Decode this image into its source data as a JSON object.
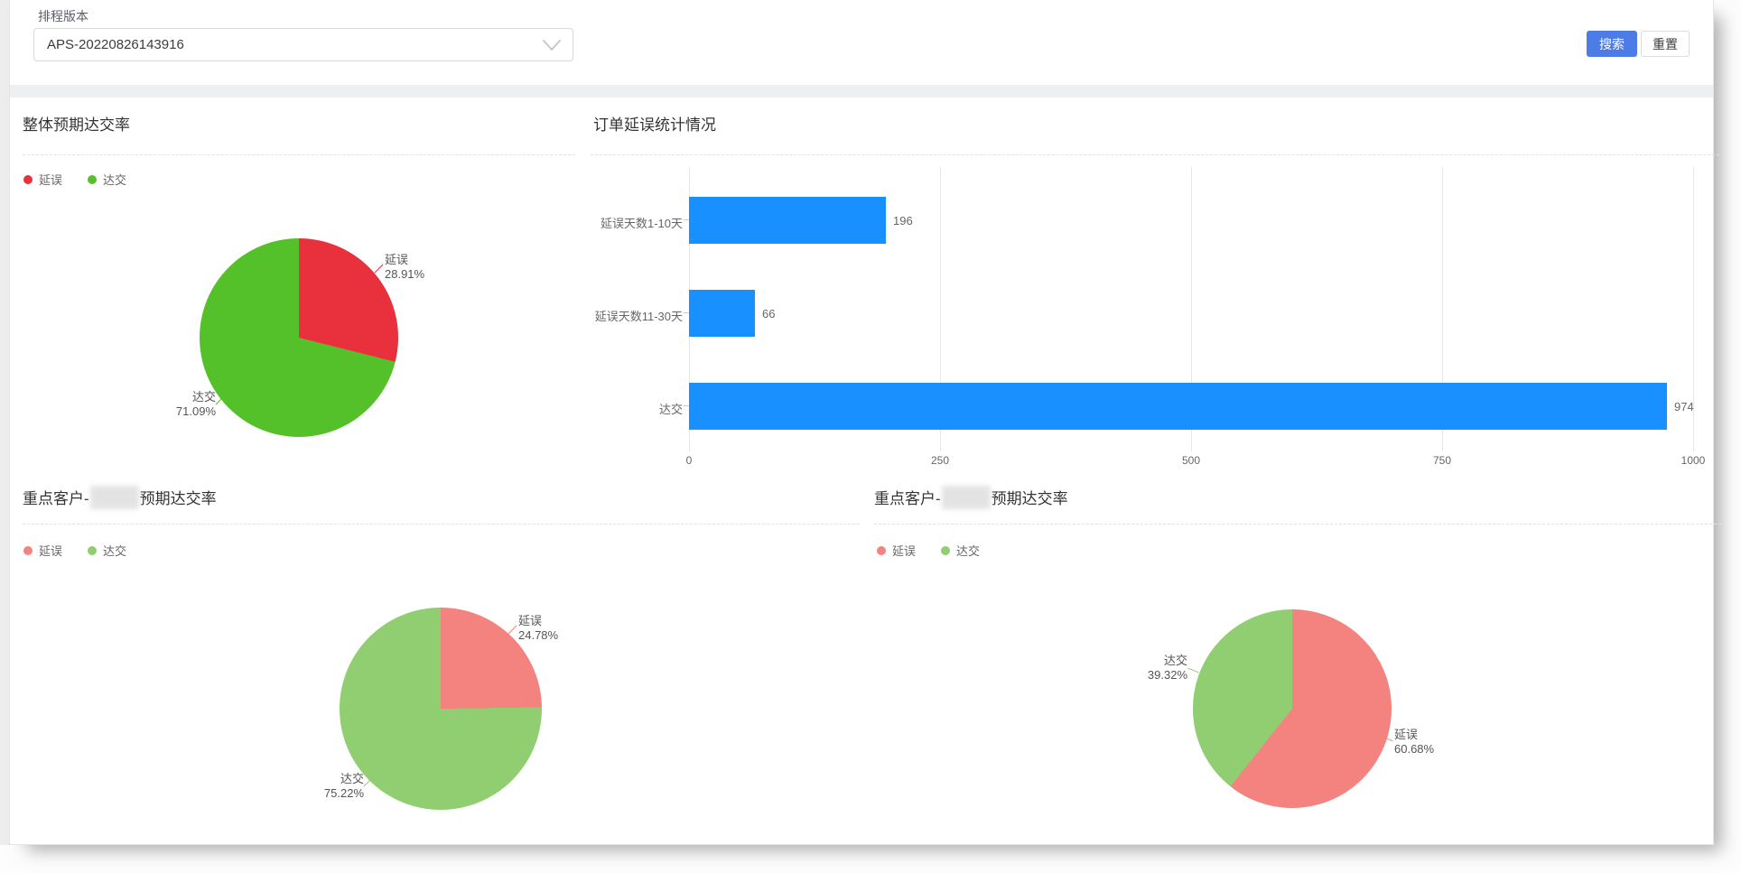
{
  "filter": {
    "label": "排程版本",
    "select_value": "APS-20220826143916",
    "search_label": "搜索",
    "reset_label": "重置",
    "search_color": "#4D7CE6"
  },
  "chart_data": [
    {
      "type": "pie",
      "title": "整体预期达交率",
      "legend_position": "top-left",
      "start_angle": "12-oclock-clockwise",
      "series": [
        {
          "name": "延误",
          "value": 28.91,
          "pct_label": "28.91%",
          "color": "#E8313C"
        },
        {
          "name": "达交",
          "value": 71.09,
          "pct_label": "71.09%",
          "color": "#54C12B"
        }
      ]
    },
    {
      "type": "bar",
      "orientation": "horizontal",
      "title": "订单延误统计情况",
      "categories": [
        "延误天数1-10天",
        "延误天数11-30天",
        "达交"
      ],
      "values": [
        196,
        66,
        974
      ],
      "xlim": [
        0,
        1000
      ],
      "xticks": [
        0,
        250,
        500,
        750,
        1000
      ],
      "bar_color": "#1890FF",
      "grid": true
    },
    {
      "type": "pie",
      "title_prefix": "重点客户-",
      "title_suffix": "预期达交率",
      "title_redacted": true,
      "start_angle": "12-oclock-clockwise",
      "series": [
        {
          "name": "延误",
          "value": 24.78,
          "pct_label": "24.78%",
          "color": "#F4827E"
        },
        {
          "name": "达交",
          "value": 75.22,
          "pct_label": "75.22%",
          "color": "#90CE71"
        }
      ]
    },
    {
      "type": "pie",
      "title_prefix": "重点客户-",
      "title_suffix": "预期达交率",
      "title_redacted": true,
      "start_angle": "12-oclock-clockwise",
      "series": [
        {
          "name": "延误",
          "value": 60.68,
          "pct_label": "60.68%",
          "color": "#F4827E"
        },
        {
          "name": "达交",
          "value": 39.32,
          "pct_label": "39.32%",
          "color": "#90CE71"
        }
      ]
    }
  ]
}
